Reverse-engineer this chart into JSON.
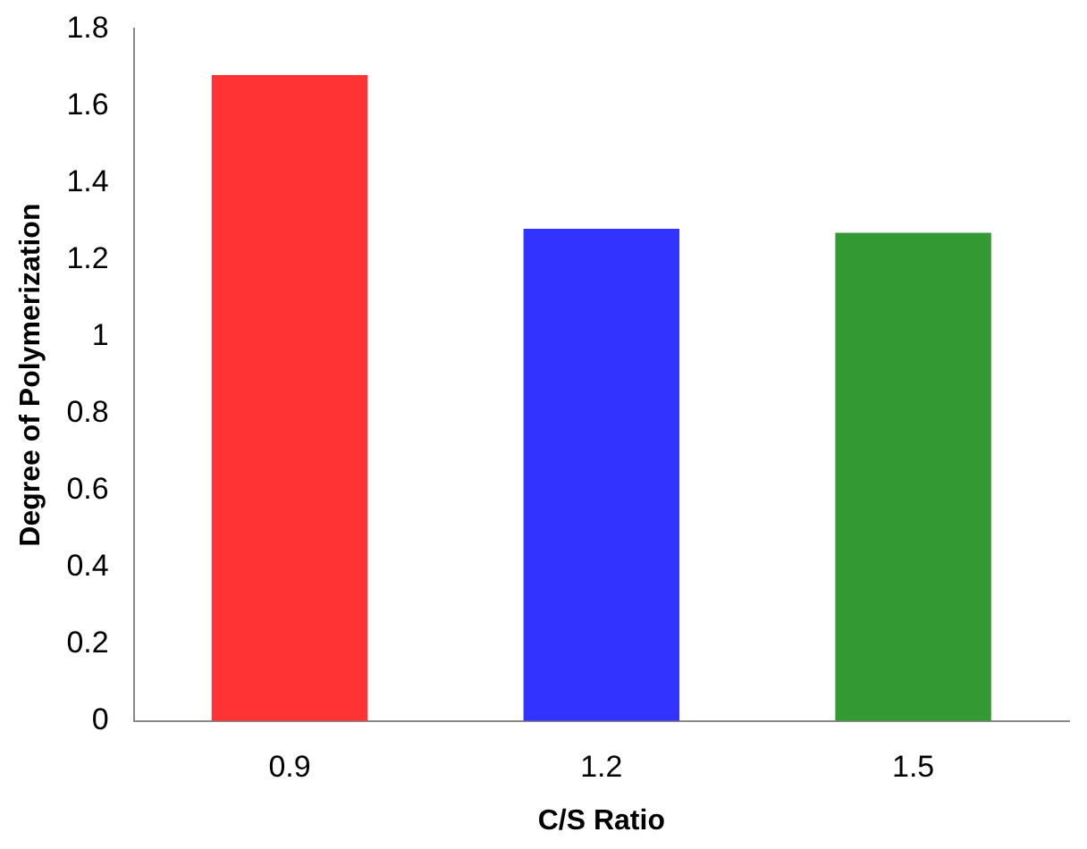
{
  "chart_data": {
    "type": "bar",
    "xlabel": "C/S Ratio",
    "ylabel": "Degree of Polymerization",
    "categories": [
      "0.9",
      "1.2",
      "1.5"
    ],
    "values": [
      1.68,
      1.28,
      1.27
    ],
    "colors": [
      "#ff3333",
      "#3333ff",
      "#339933"
    ],
    "ylim": [
      0,
      1.8
    ],
    "yticks": [
      0,
      0.2,
      0.4,
      0.6,
      0.8,
      1,
      1.2,
      1.4,
      1.6,
      1.8
    ],
    "grid": false,
    "legend": false
  }
}
